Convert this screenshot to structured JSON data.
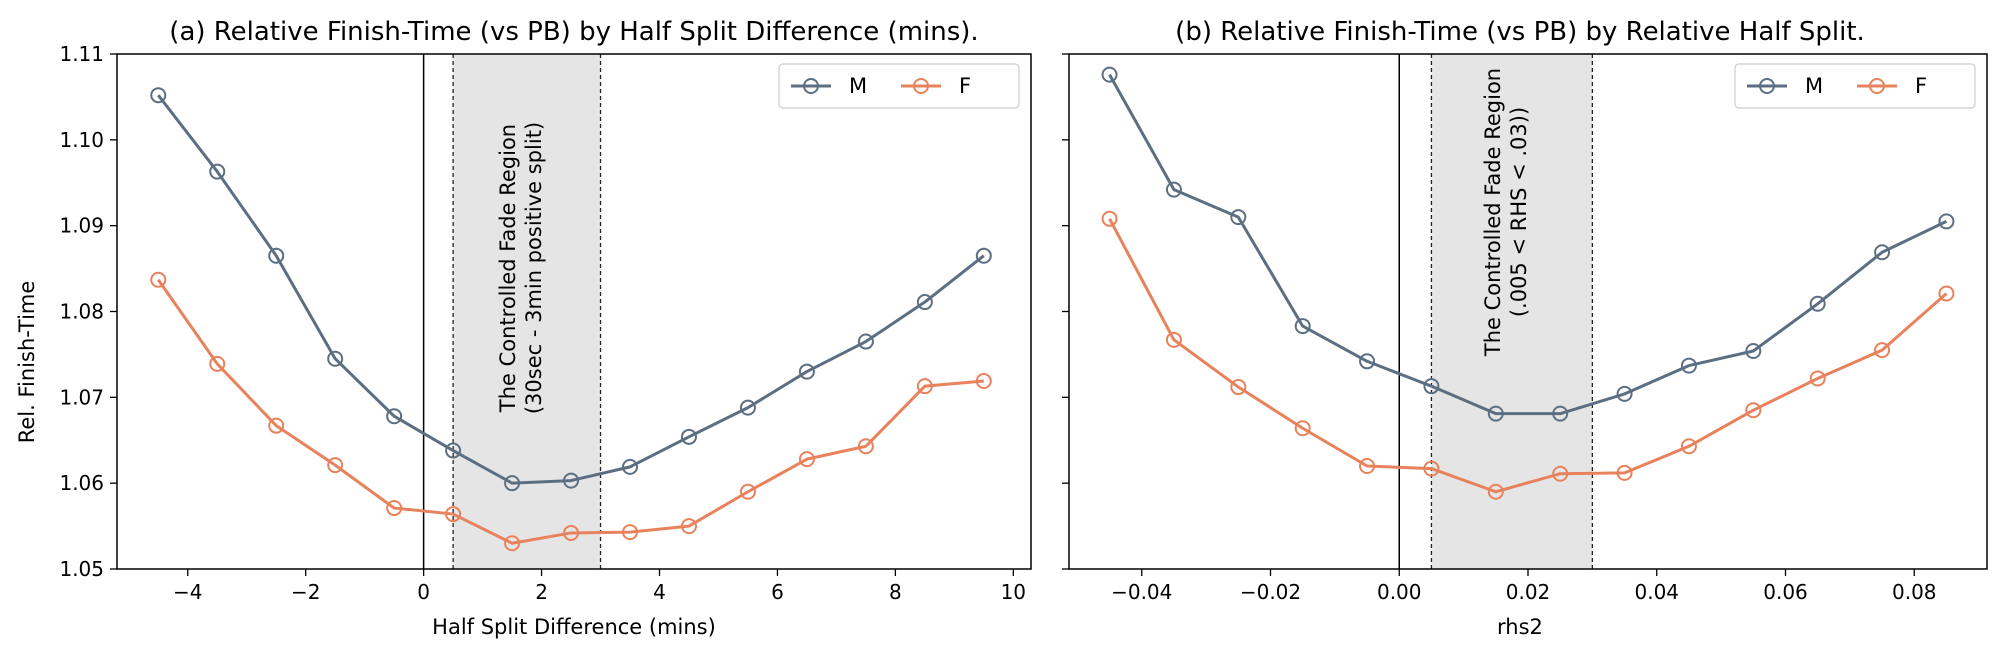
{
  "shared": {
    "ylabel": "Rel. Finish-Time"
  },
  "chart_data": [
    {
      "type": "line",
      "title": "(a) Relative Finish-Time (vs PB) by Half Split Difference (mins).",
      "xlabel": "Half Split Difference (mins)",
      "ylabel": "Rel. Finish-Time",
      "xlim": [
        -5.2,
        10.3
      ],
      "ylim": [
        1.05,
        1.11
      ],
      "xticks": [
        -4,
        -2,
        0,
        2,
        4,
        6,
        8,
        10
      ],
      "xtick_labels": [
        "−4",
        "−2",
        "0",
        "2",
        "4",
        "6",
        "8",
        "10"
      ],
      "yticks": [
        1.05,
        1.06,
        1.07,
        1.08,
        1.09,
        1.1,
        1.11
      ],
      "ytick_labels": [
        "1.05",
        "1.06",
        "1.07",
        "1.08",
        "1.09",
        "1.10",
        "1.11"
      ],
      "x": [
        -4.5,
        -3.5,
        -2.5,
        -1.5,
        -0.5,
        0.5,
        1.5,
        2.5,
        3.5,
        4.5,
        5.5,
        6.5,
        7.5,
        8.5,
        9.5
      ],
      "series": [
        {
          "name": "M",
          "color": "#5c6f82",
          "values": [
            1.1052,
            1.0963,
            1.0865,
            1.0745,
            1.0678,
            1.0638,
            1.06,
            1.0603,
            1.0619,
            1.0654,
            1.0688,
            1.073,
            1.0765,
            1.0811,
            1.0865
          ]
        },
        {
          "name": "F",
          "color": "#e8825c",
          "values": [
            1.0837,
            1.0739,
            1.0667,
            1.0621,
            1.0571,
            1.0564,
            1.053,
            1.0542,
            1.0543,
            1.055,
            1.059,
            1.0628,
            1.0643,
            1.0713,
            1.0719
          ]
        }
      ],
      "shaded_region": {
        "x": [
          0.5,
          3.0
        ],
        "color": "#e5e5e5",
        "label_lines": [
          "The Controlled Fade Region",
          "(30sec - 3min positive split)"
        ]
      },
      "zero_line": 0,
      "legend_placement": "top-right"
    },
    {
      "type": "line",
      "title": "(b) Relative Finish-Time (vs PB) by Relative Half Split.",
      "xlabel": "rhs2",
      "ylabel": "",
      "xlim": [
        -0.0513,
        0.0913
      ],
      "ylim": [
        1.05,
        1.11
      ],
      "xticks": [
        -0.04,
        -0.02,
        0.0,
        0.02,
        0.04,
        0.06,
        0.08
      ],
      "xtick_labels": [
        "−0.04",
        "−0.02",
        "0.00",
        "0.02",
        "0.04",
        "0.06",
        "0.08"
      ],
      "yticks": [
        1.05,
        1.06,
        1.07,
        1.08,
        1.09,
        1.1,
        1.11
      ],
      "ytick_labels": [],
      "x": [
        -0.045,
        -0.035,
        -0.025,
        -0.015,
        -0.005,
        0.005,
        0.015,
        0.025,
        0.035,
        0.045,
        0.055,
        0.065,
        0.075,
        0.085
      ],
      "series": [
        {
          "name": "M",
          "color": "#5c6f82",
          "values": [
            1.1076,
            1.0942,
            1.091,
            1.0783,
            1.0742,
            1.0713,
            1.0681,
            1.0681,
            1.0704,
            1.0737,
            1.0754,
            1.0809,
            1.0869,
            1.0905
          ]
        },
        {
          "name": "F",
          "color": "#e8825c",
          "values": [
            1.0908,
            1.0767,
            1.0712,
            1.0664,
            1.062,
            1.0617,
            1.059,
            1.0611,
            1.0612,
            1.0643,
            1.0685,
            1.0722,
            1.0755,
            1.0821
          ]
        }
      ],
      "shaded_region": {
        "x": [
          0.005,
          0.03
        ],
        "color": "#e5e5e5",
        "label_lines": [
          "The Controlled Fade Region",
          "(.005 < RHS < .03))"
        ]
      },
      "zero_line": 0,
      "legend_placement": "top-right"
    }
  ]
}
